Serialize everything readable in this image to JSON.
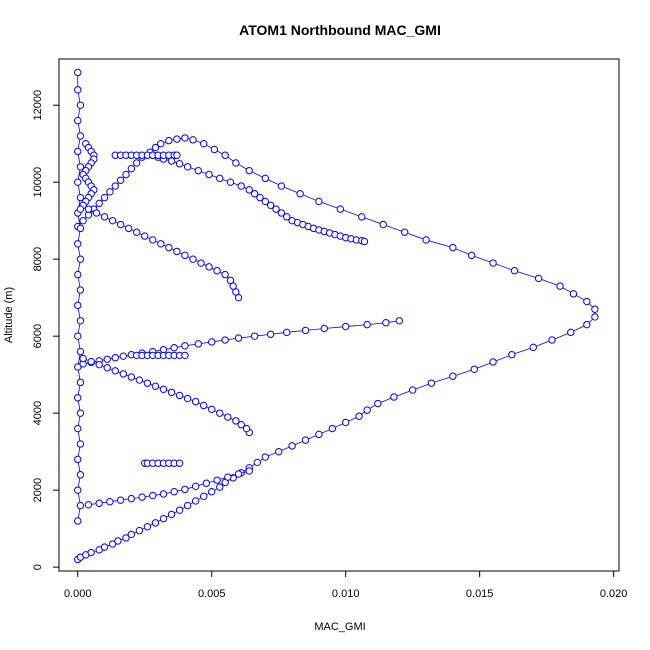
{
  "chart_data": {
    "type": "scatter",
    "title": "ATOM1 Northbound MAC_GMI",
    "xlabel": "MAC_GMI",
    "ylabel": "Altitude (m)",
    "xlim": [
      -0.0007,
      0.0202
    ],
    "ylim": [
      -100,
      13200
    ],
    "x_ticks": [
      0.0,
      0.005,
      0.01,
      0.015,
      0.02
    ],
    "x_tick_labels": [
      "0.000",
      "0.005",
      "0.010",
      "0.015",
      "0.020"
    ],
    "y_ticks": [
      0,
      2000,
      4000,
      6000,
      8000,
      10000,
      12000
    ],
    "y_tick_labels": [
      "0",
      "2000",
      "4000",
      "6000",
      "8000",
      "10000",
      "12000"
    ],
    "marker": "open-circle",
    "series": [
      {
        "color": "#0000ff",
        "x": [
          0.0,
          0.0001,
          0.0003,
          0.0005,
          0.0008,
          0.001,
          0.0013,
          0.0015,
          0.0018,
          0.002,
          0.0023,
          0.0026,
          0.0029,
          0.0032,
          0.0035,
          0.0038,
          0.0041,
          0.0044,
          0.0047,
          0.005,
          0.0053,
          0.0055,
          0.0058,
          0.0061,
          0.0064,
          0.0067,
          0.007,
          0.0075,
          0.008,
          0.0085,
          0.009,
          0.0095,
          0.01,
          0.0105,
          0.0108,
          0.0112,
          0.0118,
          0.0125,
          0.0132,
          0.014,
          0.0148,
          0.0155,
          0.0162,
          0.017,
          0.0177,
          0.0184,
          0.019,
          0.0193,
          0.0193,
          0.019,
          0.0185,
          0.018,
          0.0172,
          0.0163,
          0.0155,
          0.0147,
          0.014,
          0.013,
          0.0122,
          0.0114,
          0.0106,
          0.0098,
          0.009,
          0.0083,
          0.0076,
          0.007,
          0.0064,
          0.0059,
          0.0055,
          0.0051,
          0.0047,
          0.0043,
          0.004,
          0.0037,
          0.0034,
          0.0031,
          0.0029,
          0.0027,
          0.0024,
          0.0022,
          0.002,
          0.0018,
          0.0016,
          0.0014,
          0.0012,
          0.001,
          0.0008,
          0.0006,
          0.0004,
          0.0002,
          0.0
        ],
        "y": [
          200,
          260,
          320,
          380,
          450,
          520,
          600,
          680,
          760,
          850,
          950,
          1050,
          1150,
          1260,
          1370,
          1480,
          1600,
          1720,
          1840,
          1960,
          2080,
          2200,
          2320,
          2450,
          2580,
          2720,
          2860,
          3000,
          3150,
          3300,
          3450,
          3600,
          3760,
          3920,
          4080,
          4250,
          4420,
          4600,
          4780,
          4960,
          5140,
          5330,
          5520,
          5710,
          5900,
          6100,
          6300,
          6500,
          6700,
          6900,
          7100,
          7300,
          7500,
          7700,
          7900,
          8100,
          8300,
          8500,
          8700,
          8900,
          9100,
          9300,
          9500,
          9700,
          9900,
          10100,
          10300,
          10500,
          10700,
          10850,
          11000,
          11100,
          11150,
          11120,
          11080,
          11000,
          10900,
          10780,
          10650,
          10500,
          10350,
          10200,
          10050,
          9900,
          9750,
          9600,
          9450,
          9300,
          9150,
          9000,
          8850
        ],
        "note_free": true
      },
      {
        "color": "#0000ff",
        "x": [
          0.0028,
          0.003,
          0.0032,
          0.0035,
          0.0038,
          0.0041,
          0.0045,
          0.0049,
          0.0053,
          0.0057,
          0.0061,
          0.0064,
          0.0066,
          0.0068,
          0.007,
          0.0072,
          0.0074,
          0.0076,
          0.0078,
          0.008,
          0.0082,
          0.0084,
          0.0086,
          0.0088,
          0.009,
          0.0092,
          0.0094,
          0.0096,
          0.0098,
          0.01,
          0.0102,
          0.0104,
          0.0106,
          0.0107
        ],
        "y": [
          10700,
          10650,
          10600,
          10550,
          10480,
          10400,
          10300,
          10200,
          10100,
          10000,
          9900,
          9800,
          9700,
          9600,
          9500,
          9400,
          9300,
          9200,
          9100,
          9000,
          8950,
          8900,
          8850,
          8800,
          8760,
          8720,
          8680,
          8640,
          8600,
          8560,
          8530,
          8500,
          8480,
          8460
        ]
      },
      {
        "color": "#0000ff",
        "x": [
          0.012,
          0.0115,
          0.0108,
          0.01,
          0.0092,
          0.0085,
          0.0078,
          0.0072,
          0.0066,
          0.006,
          0.0055,
          0.005,
          0.0045,
          0.004,
          0.0036,
          0.0032,
          0.0028,
          0.0024,
          0.002,
          0.0017,
          0.0014,
          0.0011,
          0.0008,
          0.0005,
          0.0002
        ],
        "y": [
          6400,
          6350,
          6300,
          6250,
          6200,
          6150,
          6100,
          6050,
          6000,
          5950,
          5900,
          5850,
          5800,
          5750,
          5700,
          5650,
          5600,
          5560,
          5520,
          5480,
          5440,
          5400,
          5360,
          5320,
          5280
        ]
      },
      {
        "color": "#0000ff",
        "x": [
          0.0064,
          0.006,
          0.0056,
          0.0052,
          0.0048,
          0.0044,
          0.004,
          0.0036,
          0.0032,
          0.0028,
          0.0024,
          0.002,
          0.0016,
          0.0012,
          0.0008,
          0.0004
        ],
        "y": [
          2500,
          2420,
          2340,
          2260,
          2180,
          2100,
          2020,
          1960,
          1900,
          1860,
          1820,
          1780,
          1740,
          1700,
          1660,
          1620
        ]
      },
      {
        "color": "#0000ff",
        "x": [
          0.0064,
          0.0063,
          0.0061,
          0.0059,
          0.0056,
          0.0053,
          0.005,
          0.0047,
          0.0044,
          0.0041,
          0.0038,
          0.0035,
          0.0032,
          0.0029,
          0.0026,
          0.0023,
          0.002,
          0.0017,
          0.0014,
          0.0011,
          0.0008,
          0.0005,
          0.0002
        ],
        "y": [
          3500,
          3600,
          3700,
          3800,
          3900,
          4000,
          4100,
          4200,
          4300,
          4380,
          4460,
          4540,
          4620,
          4700,
          4780,
          4860,
          4940,
          5020,
          5100,
          5180,
          5260,
          5340,
          5420
        ]
      },
      {
        "color": "#0000ff",
        "x": [
          0.006,
          0.0059,
          0.0058,
          0.0057,
          0.0055,
          0.0052,
          0.0049,
          0.0046,
          0.0043,
          0.004,
          0.0037,
          0.0034,
          0.0031,
          0.0028,
          0.0025,
          0.0022,
          0.0019,
          0.0016,
          0.0013,
          0.001,
          0.0007,
          0.0004
        ],
        "y": [
          7000,
          7150,
          7300,
          7450,
          7600,
          7700,
          7800,
          7900,
          8000,
          8100,
          8200,
          8300,
          8400,
          8500,
          8600,
          8700,
          8800,
          8900,
          9000,
          9100,
          9200,
          9300
        ]
      },
      {
        "color": "#0000ff",
        "x": [
          0.0025,
          0.0026,
          0.0028,
          0.003,
          0.0032,
          0.0034,
          0.0036,
          0.0038
        ],
        "y": [
          2700,
          2700,
          2700,
          2700,
          2700,
          2700,
          2700,
          2700
        ]
      },
      {
        "color": "#0000ff",
        "x": [
          0.0014,
          0.0016,
          0.0018,
          0.002,
          0.0022,
          0.0024,
          0.0026,
          0.0028,
          0.003,
          0.0032,
          0.0034,
          0.0036,
          0.0037
        ],
        "y": [
          10700,
          10700,
          10700,
          10700,
          10700,
          10700,
          10700,
          10700,
          10700,
          10700,
          10700,
          10700,
          10700
        ]
      },
      {
        "color": "#0000ff",
        "x": [
          0.0022,
          0.0024,
          0.0026,
          0.0028,
          0.003,
          0.0032,
          0.0034,
          0.0036,
          0.0038,
          0.004
        ],
        "y": [
          5500,
          5500,
          5500,
          5500,
          5500,
          5500,
          5500,
          5500,
          5500,
          5500
        ]
      },
      {
        "color": "#0000ff",
        "x": [
          0.0,
          0.0,
          0.0001,
          0.0,
          0.0001,
          0.0,
          0.0001,
          0.0,
          0.0001,
          0.0,
          0.0001,
          0.0,
          0.0001,
          0.0,
          0.0001,
          0.0,
          0.0001,
          0.0,
          0.0001,
          0.0,
          0.0001,
          0.0,
          0.0001,
          0.0,
          0.0001,
          0.0,
          0.0001,
          0.0,
          0.0001,
          0.0
        ],
        "y": [
          12850,
          12400,
          12000,
          11600,
          11200,
          10800,
          10400,
          10000,
          9600,
          9200,
          8800,
          8400,
          8000,
          7600,
          7200,
          6800,
          6400,
          6000,
          5600,
          5200,
          4800,
          4400,
          4000,
          3600,
          3200,
          2800,
          2400,
          2000,
          1600,
          1200
        ]
      },
      {
        "color": "#0000ff",
        "x": [
          0.0003,
          0.0004,
          0.0005,
          0.0006,
          0.0006,
          0.0005,
          0.0004,
          0.0003,
          0.0002,
          0.0003,
          0.0004,
          0.0005,
          0.0006,
          0.0005,
          0.0004,
          0.0003,
          0.0002,
          0.0001
        ],
        "y": [
          11000,
          10900,
          10800,
          10700,
          10600,
          10500,
          10400,
          10300,
          10200,
          10100,
          10000,
          9900,
          9800,
          9700,
          9600,
          9500,
          9400,
          9300
        ]
      }
    ]
  }
}
